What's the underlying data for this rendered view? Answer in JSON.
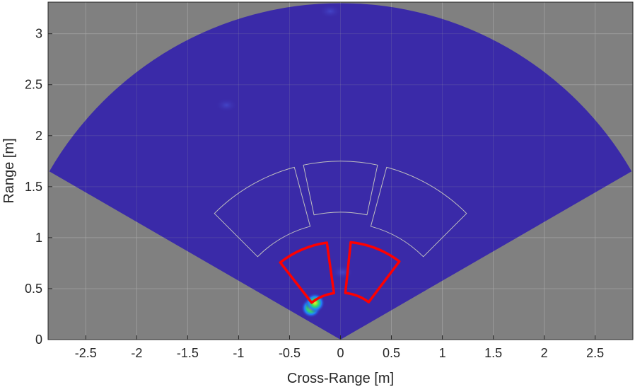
{
  "chart_data": {
    "type": "heatmap",
    "xlabel": "Cross-Range [m]",
    "ylabel": "Range [m]",
    "xlim": [
      -2.87,
      2.87
    ],
    "ylim": [
      0,
      3.31
    ],
    "x_ticks": [
      -2.5,
      -2,
      -1.5,
      -1,
      -0.5,
      0,
      0.5,
      1,
      1.5,
      2,
      2.5
    ],
    "x_tick_labels": [
      "-2.5",
      "-2",
      "-1.5",
      "-1",
      "-0.5",
      "0",
      "0.5",
      "1",
      "1.5",
      "2",
      "2.5"
    ],
    "y_ticks": [
      0,
      0.5,
      1,
      1.5,
      2,
      2.5,
      3
    ],
    "y_tick_labels": [
      "0",
      "0.5",
      "1",
      "1.5",
      "2",
      "2.5",
      "3"
    ],
    "grid": true,
    "background_color": "#808080",
    "grid_color": "#a6a6a6",
    "field_of_view": {
      "max_range": 3.3,
      "angle_min_deg": -60,
      "angle_max_deg": 60,
      "color": "#3a2aa8"
    },
    "hotspots": [
      {
        "x": -0.29,
        "y": 0.31,
        "intensity": 1.0
      },
      {
        "x": -0.25,
        "y": 0.36,
        "intensity": 0.6
      },
      {
        "x": 0.02,
        "y": 0.66,
        "intensity": 0.2
      },
      {
        "x": -1.12,
        "y": 2.3,
        "intensity": 0.15
      },
      {
        "x": -0.1,
        "y": 3.22,
        "intensity": 0.15
      }
    ],
    "zones": [
      {
        "r_min": 1.15,
        "r_max": 1.75,
        "angle_min_deg": -45,
        "angle_max_deg": -15,
        "color": "#bfbfbf",
        "width": 1
      },
      {
        "r_min": 1.25,
        "r_max": 1.75,
        "angle_min_deg": -12,
        "angle_max_deg": 12,
        "color": "#bfbfbf",
        "width": 1
      },
      {
        "r_min": 1.15,
        "r_max": 1.75,
        "angle_min_deg": 15,
        "angle_max_deg": 45,
        "color": "#bfbfbf",
        "width": 1
      },
      {
        "r_min": 0.46,
        "r_max": 0.96,
        "angle_min_deg": -38,
        "angle_max_deg": -8,
        "color": "#ff0000",
        "width": 3.5
      },
      {
        "r_min": 0.46,
        "r_max": 0.96,
        "angle_min_deg": 6,
        "angle_max_deg": 37,
        "color": "#ff0000",
        "width": 3.5
      }
    ]
  }
}
